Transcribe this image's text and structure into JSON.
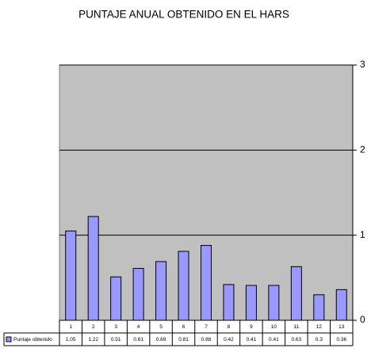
{
  "chart_data": {
    "type": "bar",
    "title": "PUNTAJE ANUAL OBTENIDO EN EL HARS",
    "categories": [
      "1",
      "2",
      "3",
      "4",
      "5",
      "6",
      "7",
      "8",
      "9",
      "10",
      "11",
      "12",
      "13"
    ],
    "series": [
      {
        "name": "Puntaje obtenido",
        "color": "#9999ff",
        "values": [
          1.05,
          1.22,
          0.51,
          0.61,
          0.69,
          0.81,
          0.88,
          0.42,
          0.41,
          0.41,
          0.63,
          0.3,
          0.36
        ]
      }
    ],
    "ylim": [
      0,
      3
    ],
    "yticks": [
      0,
      1,
      2,
      3
    ],
    "grid": true
  }
}
